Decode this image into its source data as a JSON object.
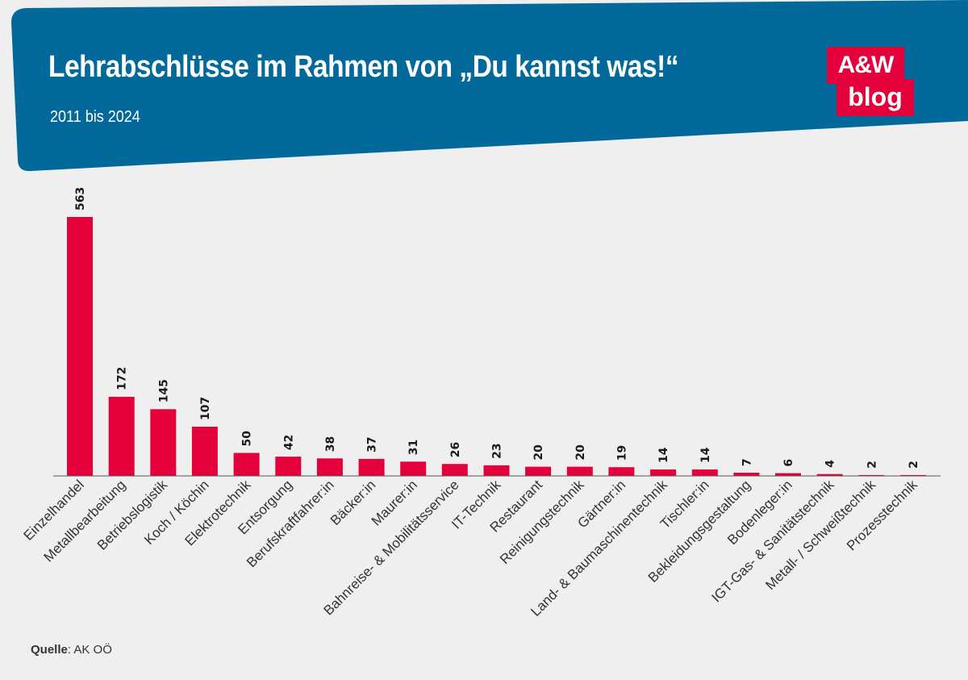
{
  "header": {
    "title": "Lehrabschlüsse im Rahmen von „Du kannst was!“",
    "subtitle": "2011 bis 2024",
    "logo_top": "A&W",
    "logo_bottom": "blog"
  },
  "colors": {
    "banner": "#03699a",
    "bar": "#e4003a",
    "background": "#efefef"
  },
  "source": {
    "label": "Quelle",
    "text": ": AK OÖ"
  },
  "chart_data": {
    "type": "bar",
    "title": "Lehrabschlüsse im Rahmen von „Du kannst was!“",
    "subtitle": "2011 bis 2024",
    "xlabel": "",
    "ylabel": "",
    "ylim": [
      0,
      563
    ],
    "grid": false,
    "categories": [
      "Einzelhandel",
      "Metallbearbeitung",
      "Betriebslogistik",
      "Koch / Köchin",
      "Elektrotechnik",
      "Entsorgung",
      "Berufskraftfahrer:in",
      "Bäcker:in",
      "Maurer:in",
      "Bahnreise- & Mobilitätsservice",
      "IT-Technik",
      "Restaurant",
      "Reinigungstechnik",
      "Gärtner:in",
      "Land- & Baumaschinentechnik",
      "Tischler:in",
      "Bekleidungsgestaltung",
      "Bodenleger:in",
      "IGT-Gas- & Sanitätstechnik",
      "Metall- / Schweißtechnik",
      "Prozesstechnik"
    ],
    "values": [
      563,
      172,
      145,
      107,
      50,
      42,
      38,
      37,
      31,
      26,
      23,
      20,
      20,
      19,
      14,
      14,
      7,
      6,
      4,
      2,
      2
    ]
  }
}
